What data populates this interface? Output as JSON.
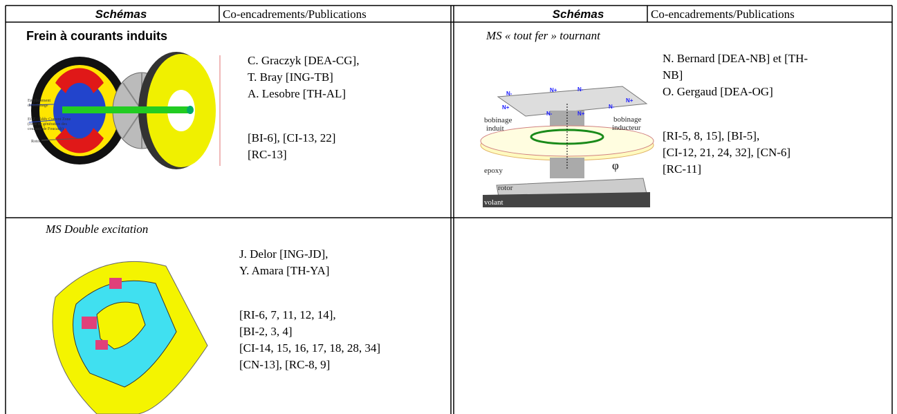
{
  "table": {
    "header": [
      "Schémas",
      "Co-encadrements/Publications",
      "Schémas",
      "Co-encadrements/Publications"
    ],
    "cells": [
      {
        "title": "Frein à courants induits",
        "labels": [
          "Emplacement",
          "du bobinage",
          "ECZ : Eddy Current Zone",
          "(zone de génération des",
          "courants de Foucault)",
          "Rotor"
        ],
        "people": [
          "C. Graczyk [DEA-CG],",
          "T. Bray [ING-TB]",
          "A. Lesobre [TH-AL]"
        ],
        "refs": [
          "[BI-6], [CI-13, 22]",
          "[RC-13]"
        ]
      },
      {
        "title": "MS « tout fer » tournant",
        "labels": [
          "bobinage",
          "induit",
          "bobinage",
          "inducteur",
          "epoxy",
          "rotor",
          "volant",
          "φ"
        ],
        "poles": [
          "N-",
          "N+",
          "N-",
          "N+",
          "N-",
          "N+",
          "N-",
          "N+"
        ],
        "people": [
          "N. Bernard [DEA-NB] et [TH-",
          "NB]",
          "O. Gergaud [DEA-OG]"
        ],
        "refs": [
          "[RI-5, 8, 15], [BI-5],",
          "[CI-12, 21, 24, 32], [CN-6]",
          "[RC-11]"
        ]
      },
      {
        "title": "MS Double excitation",
        "people": [
          "J. Delor [ING-JD],",
          "Y. Amara [TH-YA]"
        ],
        "refs": [
          "[RI-6, 7, 11, 12, 14],",
          "[BI-2, 3, 4]",
          "[CI-14, 15, 16, 17, 18, 28, 34]",
          "[CN-13], [RC-8, 9]"
        ]
      }
    ]
  }
}
